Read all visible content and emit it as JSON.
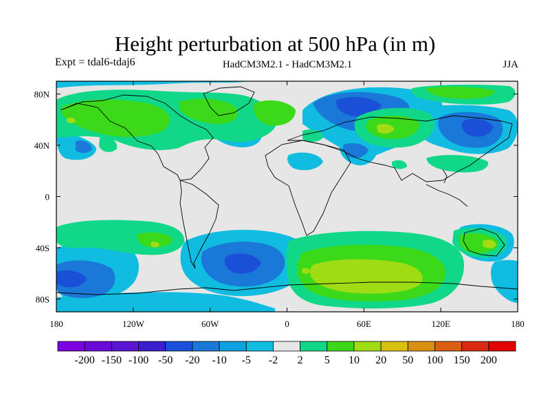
{
  "chart_data": {
    "type": "heatmap",
    "title": "Height perturbation at 500 hPa (in m)",
    "subtitle_left": "Expt = tdal6-tdaj6",
    "subtitle_center": "HadCM3M2.1 - HadCM3M2.1",
    "subtitle_right": "JJA",
    "map_projection": "cylindrical-equidistant",
    "x_range": [
      -180,
      180
    ],
    "y_range": [
      -90,
      90
    ],
    "x_ticks": [
      {
        "value": -180,
        "label": "180"
      },
      {
        "value": -120,
        "label": "120W"
      },
      {
        "value": -60,
        "label": "60W"
      },
      {
        "value": 0,
        "label": "0"
      },
      {
        "value": 60,
        "label": "60E"
      },
      {
        "value": 120,
        "label": "120E"
      },
      {
        "value": 180,
        "label": "180"
      }
    ],
    "y_ticks": [
      {
        "value": 80,
        "label": "80N"
      },
      {
        "value": 40,
        "label": "40N"
      },
      {
        "value": 0,
        "label": "0"
      },
      {
        "value": -40,
        "label": "40S"
      },
      {
        "value": -80,
        "label": "80S"
      }
    ],
    "colorbar": {
      "levels": [
        "-200",
        "-150",
        "-100",
        "-50",
        "-20",
        "-10",
        "-5",
        "-2",
        "2",
        "5",
        "10",
        "20",
        "50",
        "100",
        "150",
        "200"
      ],
      "colors": [
        "#7d00e0",
        "#6a0ad8",
        "#5b14d0",
        "#3c1ccf",
        "#1a50d8",
        "#1a78d8",
        "#0fa0e0",
        "#10bce0",
        "#e6e6e6",
        "#10d888",
        "#3cd81a",
        "#a0dc14",
        "#d8c010",
        "#d89010",
        "#d86010",
        "#d82a10",
        "#e00000"
      ]
    },
    "features": [
      {
        "name": "north-atlantic-positive",
        "kind": "positive",
        "lon": -60,
        "lat": 62,
        "level": 10
      },
      {
        "name": "north-pacific-positive",
        "kind": "positive",
        "lon": -150,
        "lat": 55,
        "level": 10
      },
      {
        "name": "central-asia-positive",
        "kind": "positive",
        "lon": 65,
        "lat": 50,
        "level": 10
      },
      {
        "name": "east-asia-negative",
        "kind": "negative",
        "lon": 140,
        "lat": 48,
        "level": -20
      },
      {
        "name": "arctic-negative",
        "kind": "negative",
        "lon": 45,
        "lat": 73,
        "level": -20
      },
      {
        "name": "south-atlantic-negative",
        "kind": "negative",
        "lon": -30,
        "lat": -50,
        "level": -20
      },
      {
        "name": "south-pacific-negative",
        "kind": "negative",
        "lon": -160,
        "lat": -60,
        "level": -20
      },
      {
        "name": "southern-ocean-positive",
        "kind": "positive",
        "lon": 60,
        "lat": -62,
        "level": 20
      },
      {
        "name": "australia-positive",
        "kind": "positive",
        "lon": 150,
        "lat": -35,
        "level": 10
      },
      {
        "name": "south-pacific-positive",
        "kind": "positive",
        "lon": -140,
        "lat": -38,
        "level": 10
      }
    ]
  }
}
